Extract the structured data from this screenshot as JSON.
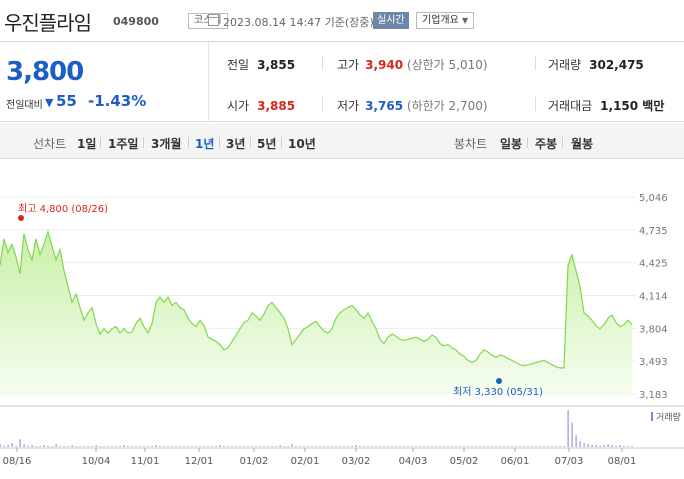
{
  "header": {
    "stock_name": "우진플라임",
    "stock_code": "049800",
    "market": "코스피",
    "date_text": "2023.08.14 14:47 기준(장중)",
    "realtime": "실시간",
    "company_info": "기업개요"
  },
  "quote": {
    "price": "3,800",
    "change_label": "전일대비",
    "change_value": "55",
    "change_rate": "-1.43%",
    "prev_close_label": "전일",
    "prev_close": "3,855",
    "high_label": "고가",
    "high": "3,940",
    "upper_limit": "(상한가 5,010)",
    "volume_label": "거래량",
    "volume": "302,475",
    "open_label": "시가",
    "open": "3,885",
    "low_label": "저가",
    "low": "3,765",
    "lower_limit": "(하한가 2,700)",
    "amount_label": "거래대금",
    "amount": "1,150 백만"
  },
  "periods": {
    "line_label": "선차트",
    "line_items": [
      "1일",
      "1주일",
      "3개월",
      "1년",
      "3년",
      "5년",
      "10년"
    ],
    "active": "1년",
    "candle_label": "봉차트",
    "candle_items": [
      "일봉",
      "주봉",
      "월봉"
    ]
  },
  "colors": {
    "up": "#d9261c",
    "down": "#1d5ec4",
    "line": "#7fd94a",
    "area": "#e9f8dc"
  },
  "chart_data": {
    "type": "area",
    "y_ticks": [
      "5,046",
      "4,735",
      "4,425",
      "4,114",
      "3,804",
      "3,493",
      "3,183"
    ],
    "ylim": [
      3183,
      5046
    ],
    "x_ticks": [
      "08/16",
      "10/04",
      "11/01",
      "12/01",
      "01/02",
      "02/01",
      "03/02",
      "04/03",
      "05/02",
      "06/01",
      "07/03",
      "08/01"
    ],
    "high_annotation": "최고 4,800 (08/26)",
    "low_annotation": "최저 3,330 (05/31)",
    "volume_label": "거래량",
    "values": [
      4400,
      4650,
      4520,
      4600,
      4480,
      4320,
      4700,
      4550,
      4450,
      4650,
      4500,
      4600,
      4720,
      4580,
      4450,
      4550,
      4350,
      4200,
      4050,
      4130,
      4000,
      3880,
      3950,
      4000,
      3850,
      3750,
      3800,
      3760,
      3800,
      3820,
      3760,
      3800,
      3760,
      3770,
      3850,
      3900,
      3820,
      3760,
      3850,
      4050,
      4100,
      4050,
      4100,
      4020,
      4050,
      4000,
      3980,
      3900,
      3850,
      3820,
      3880,
      3830,
      3720,
      3700,
      3680,
      3650,
      3600,
      3620,
      3680,
      3740,
      3800,
      3860,
      3880,
      3950,
      3920,
      3880,
      3940,
      4020,
      4050,
      4000,
      3950,
      3900,
      3800,
      3650,
      3700,
      3750,
      3800,
      3820,
      3850,
      3870,
      3820,
      3780,
      3760,
      3800,
      3900,
      3950,
      3980,
      4000,
      4020,
      3980,
      3930,
      3900,
      3950,
      3870,
      3800,
      3700,
      3660,
      3720,
      3750,
      3730,
      3700,
      3690,
      3700,
      3710,
      3720,
      3700,
      3680,
      3700,
      3740,
      3720,
      3660,
      3640,
      3650,
      3620,
      3600,
      3560,
      3540,
      3500,
      3480,
      3500,
      3560,
      3600,
      3580,
      3550,
      3530,
      3550,
      3540,
      3520,
      3500,
      3480,
      3460,
      3450,
      3460,
      3470,
      3480,
      3490,
      3500,
      3480,
      3460,
      3440,
      3430,
      3430,
      4400,
      4500,
      4350,
      4200,
      3950,
      3920,
      3880,
      3830,
      3800,
      3840,
      3900,
      3930,
      3860,
      3820,
      3840,
      3880,
      3840
    ],
    "volume": [
      3,
      1,
      2,
      4,
      1,
      8,
      3,
      1,
      2,
      1,
      1,
      2,
      1,
      1,
      3,
      1,
      1,
      1,
      2,
      1,
      1,
      1,
      1,
      1,
      2,
      1,
      1,
      1,
      1,
      1,
      1,
      2,
      1,
      1,
      1,
      1,
      1,
      1,
      1,
      2,
      1,
      1,
      1,
      1,
      1,
      1,
      1,
      1,
      1,
      1,
      1,
      1,
      1,
      1,
      1,
      2,
      1,
      1,
      1,
      1,
      1,
      1,
      1,
      1,
      1,
      1,
      1,
      1,
      1,
      1,
      2,
      1,
      1,
      3,
      1,
      1,
      1,
      1,
      1,
      1,
      1,
      1,
      1,
      1,
      1,
      1,
      1,
      1,
      1,
      2,
      1,
      1,
      1,
      1,
      1,
      1,
      1,
      1,
      1,
      1,
      1,
      1,
      1,
      1,
      1,
      1,
      1,
      1,
      1,
      1,
      1,
      1,
      1,
      1,
      1,
      1,
      1,
      1,
      1,
      1,
      1,
      1,
      1,
      1,
      1,
      1,
      1,
      1,
      1,
      1,
      1,
      1,
      1,
      1,
      1,
      1,
      1,
      1,
      1,
      1,
      1,
      1,
      38,
      25,
      12,
      6,
      4,
      3,
      2,
      2,
      1,
      2,
      3,
      2,
      1,
      2,
      1,
      1,
      1
    ]
  }
}
